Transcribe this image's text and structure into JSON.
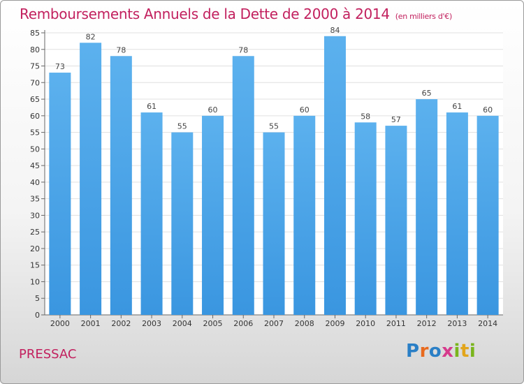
{
  "chart_data": {
    "type": "bar",
    "title": "Remboursements Annuels de la Dette de 2000 à 2014",
    "subtitle": "(en milliers d'€)",
    "categories": [
      "2000",
      "2001",
      "2002",
      "2003",
      "2004",
      "2005",
      "2006",
      "2007",
      "2008",
      "2009",
      "2010",
      "2011",
      "2012",
      "2013",
      "2014"
    ],
    "values": [
      73,
      82,
      78,
      61,
      55,
      60,
      78,
      55,
      60,
      84,
      58,
      57,
      65,
      61,
      60
    ],
    "ylim": [
      0,
      85
    ],
    "ytick_step": 5,
    "grid": true,
    "bar_color": "#3a96e0",
    "bar_color_light": "#5cb1ee",
    "grid_color": "#e0e0e0"
  },
  "footer": {
    "town": "PRESSAC",
    "logo_letters": [
      "P",
      "r",
      "o",
      "x",
      "i",
      "t",
      "i"
    ],
    "logo_colors": [
      "#2a7fc6",
      "#e86a1e",
      "#2a7fc6",
      "#d63a8c",
      "#7ab51d",
      "#e2a51b",
      "#7ab51d"
    ]
  }
}
